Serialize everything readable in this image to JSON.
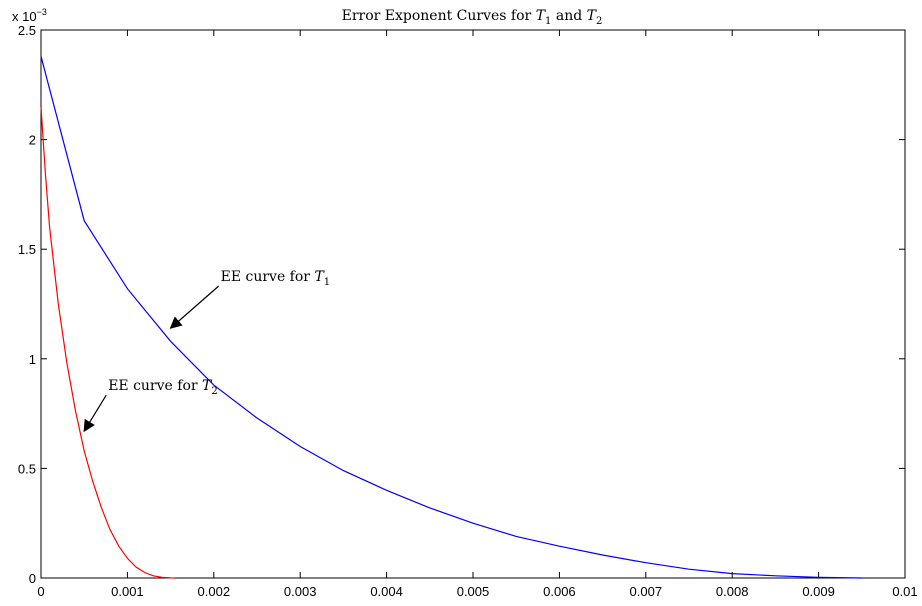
{
  "chart_data": {
    "type": "line",
    "title_prefix": "Error Exponent Curves for ",
    "title_t1": "T",
    "title_t1_sub": "1",
    "title_mid": " and ",
    "title_t2": "T",
    "title_t2_sub": "2",
    "xlabel": "",
    "ylabel": "",
    "y_exponent_label": "x 10",
    "y_exponent_power": "−3",
    "xlim": [
      0,
      0.01
    ],
    "ylim": [
      0,
      0.0025
    ],
    "x_ticks": [
      "0",
      "0.001",
      "0.002",
      "0.003",
      "0.004",
      "0.005",
      "0.006",
      "0.007",
      "0.008",
      "0.009",
      "0.01"
    ],
    "y_ticks": [
      "0",
      "0.5",
      "1",
      "1.5",
      "2",
      "2.5"
    ],
    "grid": false,
    "series": [
      {
        "color": "#0000ff",
        "x": [
          0,
          0.0005,
          0.001,
          0.0015,
          0.002,
          0.0025,
          0.003,
          0.0035,
          0.004,
          0.0045,
          0.005,
          0.0055,
          0.006,
          0.0065,
          0.007,
          0.0075,
          0.008,
          0.0085,
          0.009,
          0.0095
        ],
        "y": [
          0.00238,
          0.00163,
          0.00132,
          0.00108,
          0.00088,
          0.00073,
          0.0006,
          0.00049,
          0.0004,
          0.00032,
          0.00025,
          0.00019,
          0.000145,
          0.000105,
          7e-05,
          4e-05,
          2e-05,
          1e-05,
          3e-06,
          0
        ]
      },
      {
        "color": "#ff0000",
        "x": [
          0,
          5e-05,
          0.0001,
          0.0002,
          0.0003,
          0.0004,
          0.0005,
          0.0006,
          0.0007,
          0.0008,
          0.0009,
          0.001,
          0.0011,
          0.0012,
          0.0013,
          0.0014,
          0.0015,
          0.00155
        ],
        "y": [
          0.00215,
          0.00185,
          0.0016,
          0.00125,
          0.00098,
          0.00076,
          0.00058,
          0.00044,
          0.00032,
          0.00022,
          0.000145,
          9e-05,
          5e-05,
          2.5e-05,
          1e-05,
          3e-06,
          5e-07,
          0
        ]
      }
    ],
    "annotations": [
      {
        "text": "EE curve for ",
        "math": "T",
        "sub": "1",
        "target": [
          0.0015,
          0.00114
        ]
      },
      {
        "text": "EE curve for ",
        "math": "T",
        "sub": "2",
        "target": [
          0.0005,
          0.00067
        ]
      }
    ]
  }
}
